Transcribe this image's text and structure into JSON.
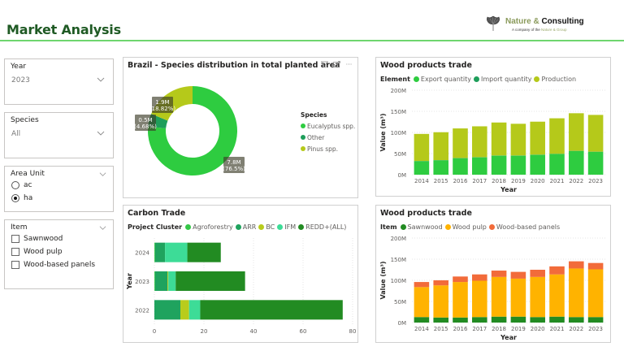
{
  "header": {
    "title": "Market Analysis",
    "logo": {
      "brand_part1": "Nature & ",
      "brand_part2": "Consulting",
      "tagline_prefix": "A company of the ",
      "tagline_group": "Nature & Group",
      "icon": "ginkgo-leaf-icon"
    },
    "accent_color": "#6fd66f",
    "title_color": "#1f5a24"
  },
  "filters": {
    "year": {
      "label": "Year",
      "value": "2023",
      "icon": "chevron-down-icon"
    },
    "species": {
      "label": "Species",
      "value": "All",
      "icon": "chevron-down-icon"
    },
    "area_unit": {
      "label": "Area Unit",
      "options": [
        {
          "label": "ac",
          "selected": false
        },
        {
          "label": "ha",
          "selected": true
        }
      ]
    },
    "item": {
      "label": "Item",
      "options": [
        {
          "label": "Sawnwood",
          "checked": false
        },
        {
          "label": "Wood pulp",
          "checked": false
        },
        {
          "label": "Wood-based panels",
          "checked": false
        }
      ]
    }
  },
  "species_card": {
    "title": "Brazil - Species distribution in total planted area",
    "icons": [
      "filter-icon",
      "focus-mode-icon",
      "more-options-icon"
    ],
    "more_label": "···"
  },
  "carbon_card": {
    "title": "Carbon Trade"
  },
  "trade_card_1": {
    "title": "Wood products trade"
  },
  "trade_card_2": {
    "title": "Wood products trade"
  },
  "chart_data": [
    {
      "type": "pie",
      "title": "Brazil - Species distribution in total planted area",
      "legend_title": "Species",
      "legend_position": "right",
      "donut": true,
      "slices": [
        {
          "name": "Eucalyptus spp.",
          "value": 7.8,
          "percent": 76.5,
          "label": "7.8M",
          "pct_label": "(76.5%)",
          "color": "#2ecc40"
        },
        {
          "name": "Other",
          "value": 0.5,
          "percent": 4.68,
          "label": "0.5M",
          "pct_label": "(4.68%)",
          "color": "#1e9e5a"
        },
        {
          "name": "Pinus spp.",
          "value": 1.9,
          "percent": 18.82,
          "label": "1.9M",
          "pct_label": "(18.82%)",
          "color": "#b5c91a"
        }
      ]
    },
    {
      "type": "bar",
      "orientation": "horizontal",
      "stacked": true,
      "title": "Carbon Trade",
      "legend_title": "Project Cluster",
      "legend_position": "top",
      "ylabel": "Year",
      "xlabel": "",
      "categories": [
        "2024",
        "2023",
        "2022"
      ],
      "xlim": [
        0,
        80
      ],
      "xticks": [
        "0",
        "20",
        "40",
        "60",
        "80"
      ],
      "grid": true,
      "series": [
        {
          "name": "Agroforestry",
          "color": "#35c748",
          "values": [
            0.3,
            0.3,
            0
          ]
        },
        {
          "name": "ARR",
          "color": "#1fa35e",
          "values": [
            4,
            5,
            10.5
          ]
        },
        {
          "name": "BC",
          "color": "#b8cc1c",
          "values": [
            0,
            0.3,
            3.5
          ]
        },
        {
          "name": "IFM",
          "color": "#3ddc97",
          "values": [
            9,
            3,
            4.5
          ]
        },
        {
          "name": "REDD+(ALL)",
          "color": "#228b22",
          "values": [
            13.5,
            28,
            57.5
          ]
        }
      ]
    },
    {
      "type": "bar",
      "stacked": true,
      "title": "Wood products trade",
      "legend_title": "Element",
      "legend_position": "top",
      "xlabel": "Year",
      "ylabel": "Value (m³)",
      "ylim": [
        0,
        200
      ],
      "yticks": [
        "0M",
        "50M",
        "100M",
        "150M",
        "200M"
      ],
      "categories": [
        "2014",
        "2015",
        "2016",
        "2017",
        "2018",
        "2019",
        "2020",
        "2021",
        "2022",
        "2023"
      ],
      "grid": true,
      "series": [
        {
          "name": "Export quantity",
          "color": "#2ecc40",
          "values": [
            32,
            34,
            39,
            41,
            45,
            45,
            47,
            49,
            56,
            54
          ]
        },
        {
          "name": "Import quantity",
          "color": "#1e9e5a",
          "values": [
            0.5,
            0.5,
            0.5,
            0.5,
            0.5,
            0.5,
            0.5,
            0.5,
            0.5,
            0.5
          ]
        },
        {
          "name": "Production",
          "color": "#b5c91a",
          "values": [
            64,
            66,
            70,
            73,
            78,
            75,
            78,
            84,
            89,
            87
          ]
        }
      ]
    },
    {
      "type": "bar",
      "stacked": true,
      "title": "Wood products trade",
      "legend_title": "Item",
      "legend_position": "top",
      "xlabel": "Year",
      "ylabel": "Value (m³)",
      "ylim": [
        0,
        200
      ],
      "yticks": [
        "0M",
        "50M",
        "100M",
        "150M",
        "200M"
      ],
      "categories": [
        "2014",
        "2015",
        "2016",
        "2017",
        "2018",
        "2019",
        "2020",
        "2021",
        "2022",
        "2023"
      ],
      "grid": true,
      "series": [
        {
          "name": "Sawnwood",
          "color": "#228b22",
          "values": [
            13,
            12,
            12,
            13,
            14,
            14,
            13,
            14,
            13,
            13
          ]
        },
        {
          "name": "Wood pulp",
          "color": "#ffb300",
          "values": [
            71,
            76,
            84,
            86,
            94,
            90,
            95,
            100,
            115,
            113
          ]
        },
        {
          "name": "Wood-based panels",
          "color": "#f26b3a",
          "values": [
            12,
            12,
            13,
            15,
            15,
            16,
            17,
            19,
            17,
            15
          ]
        }
      ]
    }
  ]
}
